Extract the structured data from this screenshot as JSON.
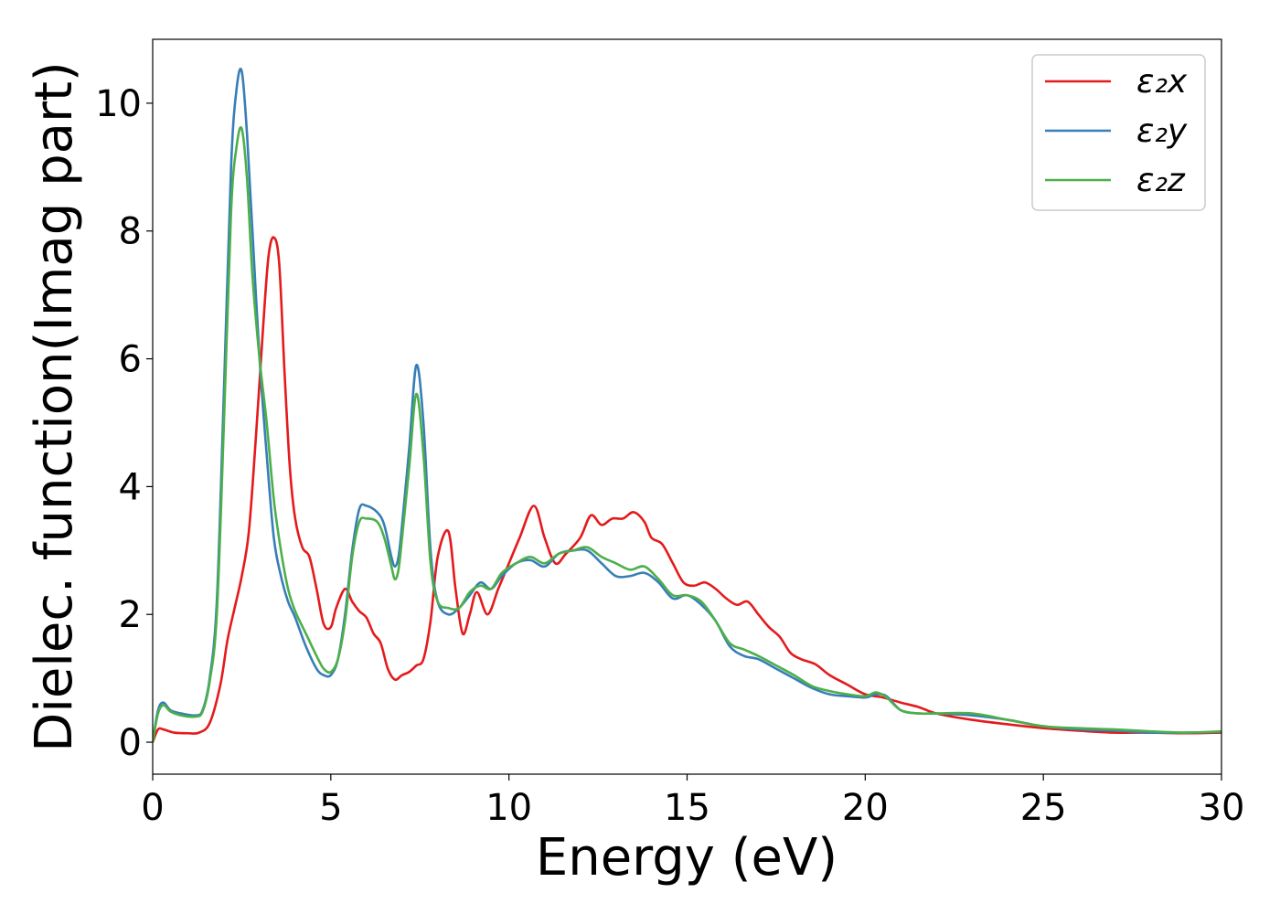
{
  "chart_data": {
    "type": "line",
    "xlabel": "Energy (eV)",
    "ylabel": "Dielec. function(Imag part)",
    "xlim": [
      0,
      30
    ],
    "ylim": [
      -0.5,
      11.0
    ],
    "xticks": [
      0,
      5,
      10,
      15,
      20,
      25,
      30
    ],
    "yticks": [
      0,
      2,
      4,
      6,
      8,
      10
    ],
    "grid": false,
    "legend_position": "top-right",
    "series": [
      {
        "name": "ε₂x",
        "color": "#e41a1c",
        "x": [
          0,
          0.15,
          0.3,
          0.6,
          1.0,
          1.3,
          1.6,
          1.9,
          2.1,
          2.3,
          2.5,
          2.7,
          2.9,
          3.1,
          3.25,
          3.4,
          3.55,
          3.7,
          3.85,
          4.0,
          4.2,
          4.4,
          4.6,
          4.8,
          5.0,
          5.15,
          5.4,
          5.6,
          5.8,
          6.0,
          6.2,
          6.4,
          6.6,
          6.8,
          7.0,
          7.2,
          7.4,
          7.6,
          7.8,
          8.0,
          8.3,
          8.5,
          8.7,
          8.9,
          9.1,
          9.4,
          9.7,
          10.0,
          10.3,
          10.7,
          11.0,
          11.3,
          11.6,
          12.0,
          12.3,
          12.6,
          12.9,
          13.2,
          13.5,
          13.8,
          14.0,
          14.3,
          14.6,
          14.9,
          15.2,
          15.5,
          15.8,
          16.1,
          16.4,
          16.7,
          17.0,
          17.3,
          17.6,
          17.9,
          18.2,
          18.6,
          19.0,
          19.5,
          20.0,
          20.5,
          21.0,
          21.5,
          22.0,
          23.0,
          24.0,
          25.0,
          26.0,
          27.0,
          28.0,
          29.0,
          30.0
        ],
        "y": [
          0.0,
          0.2,
          0.2,
          0.15,
          0.14,
          0.15,
          0.3,
          0.9,
          1.6,
          2.1,
          2.6,
          3.3,
          4.8,
          6.5,
          7.6,
          7.9,
          7.5,
          5.8,
          4.3,
          3.5,
          3.05,
          2.9,
          2.4,
          1.85,
          1.8,
          2.1,
          2.4,
          2.2,
          2.05,
          1.95,
          1.7,
          1.55,
          1.15,
          0.98,
          1.05,
          1.1,
          1.2,
          1.3,
          1.9,
          2.9,
          3.3,
          2.4,
          1.7,
          2.0,
          2.35,
          2.0,
          2.4,
          2.8,
          3.2,
          3.7,
          3.2,
          2.8,
          2.95,
          3.2,
          3.55,
          3.4,
          3.5,
          3.5,
          3.6,
          3.45,
          3.2,
          3.1,
          2.8,
          2.5,
          2.45,
          2.5,
          2.4,
          2.25,
          2.15,
          2.2,
          2.0,
          1.8,
          1.65,
          1.4,
          1.3,
          1.22,
          1.05,
          0.9,
          0.75,
          0.7,
          0.62,
          0.55,
          0.45,
          0.35,
          0.28,
          0.22,
          0.18,
          0.15,
          0.15,
          0.14,
          0.15
        ]
      },
      {
        "name": "ε₂y",
        "color": "#377eb8",
        "x": [
          0,
          0.15,
          0.3,
          0.5,
          0.8,
          1.2,
          1.4,
          1.6,
          1.8,
          2.0,
          2.2,
          2.35,
          2.5,
          2.65,
          2.8,
          3.0,
          3.2,
          3.4,
          3.6,
          3.8,
          4.0,
          4.3,
          4.6,
          4.8,
          5.0,
          5.2,
          5.4,
          5.6,
          5.8,
          6.0,
          6.3,
          6.5,
          6.7,
          6.8,
          6.9,
          7.0,
          7.2,
          7.4,
          7.6,
          7.8,
          8.0,
          8.3,
          8.6,
          8.9,
          9.2,
          9.5,
          9.8,
          10.2,
          10.6,
          11.0,
          11.4,
          11.8,
          12.2,
          12.6,
          13.0,
          13.4,
          13.8,
          14.2,
          14.6,
          15.0,
          15.4,
          15.8,
          16.2,
          16.6,
          17.0,
          17.5,
          18.0,
          18.5,
          19.0,
          19.5,
          20.0,
          20.3,
          20.6,
          21.0,
          21.5,
          22.0,
          23.0,
          24.0,
          25.0,
          26.0,
          27.0,
          28.0,
          29.0,
          30.0
        ],
        "y": [
          0.0,
          0.5,
          0.62,
          0.5,
          0.45,
          0.42,
          0.5,
          1.0,
          2.2,
          5.5,
          9.0,
          10.2,
          10.5,
          9.5,
          8.0,
          6.0,
          4.5,
          3.2,
          2.6,
          2.2,
          1.95,
          1.5,
          1.15,
          1.05,
          1.05,
          1.3,
          2.0,
          3.0,
          3.65,
          3.7,
          3.6,
          3.4,
          2.9,
          2.75,
          2.9,
          3.4,
          4.6,
          5.9,
          5.0,
          3.0,
          2.2,
          2.0,
          2.1,
          2.3,
          2.5,
          2.4,
          2.6,
          2.8,
          2.85,
          2.75,
          2.95,
          3.0,
          3.0,
          2.8,
          2.6,
          2.6,
          2.65,
          2.5,
          2.25,
          2.3,
          2.15,
          1.9,
          1.5,
          1.35,
          1.3,
          1.15,
          1.0,
          0.85,
          0.75,
          0.72,
          0.7,
          0.75,
          0.72,
          0.5,
          0.45,
          0.45,
          0.42,
          0.35,
          0.25,
          0.2,
          0.18,
          0.15,
          0.15,
          0.16
        ]
      },
      {
        "name": "ε₂z",
        "color": "#4daf4a",
        "x": [
          0,
          0.15,
          0.3,
          0.5,
          0.8,
          1.2,
          1.4,
          1.6,
          1.8,
          2.0,
          2.2,
          2.35,
          2.5,
          2.65,
          2.8,
          3.0,
          3.2,
          3.4,
          3.6,
          3.8,
          4.0,
          4.3,
          4.6,
          4.8,
          5.0,
          5.2,
          5.4,
          5.6,
          5.8,
          6.0,
          6.3,
          6.5,
          6.7,
          6.8,
          6.9,
          7.0,
          7.2,
          7.4,
          7.6,
          7.8,
          8.0,
          8.3,
          8.6,
          8.9,
          9.2,
          9.5,
          9.8,
          10.2,
          10.6,
          11.0,
          11.4,
          11.8,
          12.2,
          12.6,
          13.0,
          13.4,
          13.8,
          14.2,
          14.6,
          15.0,
          15.4,
          15.8,
          16.2,
          16.6,
          17.0,
          17.5,
          18.0,
          18.5,
          19.0,
          19.5,
          20.0,
          20.3,
          20.6,
          21.0,
          21.5,
          22.0,
          23.0,
          24.0,
          25.0,
          26.0,
          27.0,
          28.0,
          29.0,
          30.0
        ],
        "y": [
          0.0,
          0.45,
          0.58,
          0.48,
          0.42,
          0.4,
          0.48,
          0.95,
          2.0,
          5.0,
          8.3,
          9.3,
          9.6,
          8.8,
          7.3,
          6.0,
          5.0,
          3.8,
          3.0,
          2.4,
          2.05,
          1.7,
          1.35,
          1.15,
          1.1,
          1.3,
          1.9,
          2.9,
          3.45,
          3.5,
          3.45,
          3.2,
          2.75,
          2.55,
          2.7,
          3.2,
          4.3,
          5.45,
          4.5,
          2.8,
          2.2,
          2.1,
          2.1,
          2.35,
          2.45,
          2.4,
          2.65,
          2.8,
          2.9,
          2.8,
          2.95,
          3.0,
          3.05,
          2.9,
          2.8,
          2.7,
          2.75,
          2.55,
          2.3,
          2.3,
          2.2,
          1.9,
          1.55,
          1.45,
          1.35,
          1.2,
          1.05,
          0.88,
          0.8,
          0.75,
          0.72,
          0.78,
          0.7,
          0.5,
          0.45,
          0.45,
          0.45,
          0.35,
          0.25,
          0.22,
          0.2,
          0.17,
          0.15,
          0.17
        ]
      }
    ]
  }
}
